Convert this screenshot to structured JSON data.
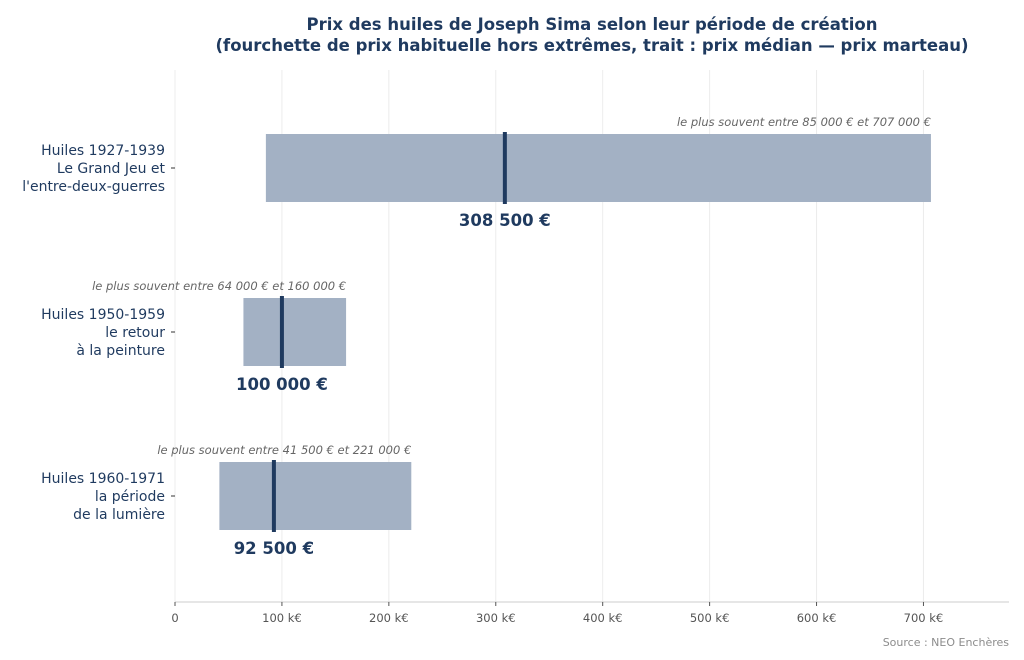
{
  "chart_data": {
    "type": "bar",
    "orientation": "horizontal",
    "title_line1": "Prix des huiles de Joseph Sima selon leur période de création",
    "title_line2": "(fourchette de prix habituelle hors extrêmes, trait : prix médian — prix marteau)",
    "xlabel": "",
    "ylabel": "",
    "xlim": [
      0,
      780000
    ],
    "x_ticks": [
      0,
      100000,
      200000,
      300000,
      400000,
      500000,
      600000,
      700000
    ],
    "x_tick_labels": [
      "0",
      "100 k€",
      "200 k€",
      "300 k€",
      "400 k€",
      "500 k€",
      "600 k€",
      "700 k€"
    ],
    "grid": "vertical",
    "categories": [
      {
        "label_lines": [
          "Huiles 1927-1939",
          "Le Grand Jeu et",
          "l'entre-deux-guerres"
        ],
        "low": 85000,
        "high": 707000,
        "median": 308500,
        "median_label": "308 500 €",
        "range_label": "le plus souvent entre 85 000 € et 707 000 €"
      },
      {
        "label_lines": [
          "Huiles 1950-1959",
          "le retour",
          "à la peinture"
        ],
        "low": 64000,
        "high": 160000,
        "median": 100000,
        "median_label": "100 000 €",
        "range_label": "le plus souvent entre 64 000 € et 160 000 €"
      },
      {
        "label_lines": [
          "Huiles 1960-1971",
          "la période",
          "de la lumière"
        ],
        "low": 41500,
        "high": 221000,
        "median": 92500,
        "median_label": "92 500 €",
        "range_label": "le plus souvent entre 41 500 € et 221 000 €"
      }
    ],
    "source": "Source : NEO Enchères",
    "colors": {
      "bar": "#a3b1c4",
      "median": "#1f3a5f",
      "text": "#1f3a5f",
      "annotation": "#666666",
      "grid": "#ececec",
      "axis": "#cccccc"
    }
  }
}
